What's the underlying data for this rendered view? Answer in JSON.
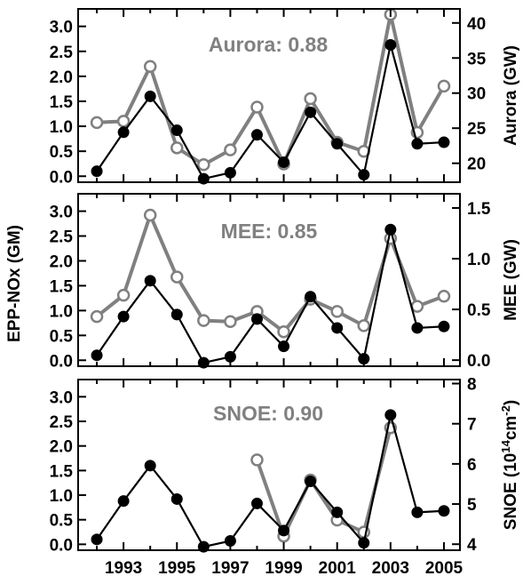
{
  "colors": {
    "epp": "#000000",
    "overlay": "#808080",
    "background": "#ffffff"
  },
  "shared_ylabel": "EPP-NOx (GM)",
  "chart_data": [
    {
      "type": "line",
      "title": "Aurora: 0.88",
      "xlabel": "",
      "xlim": [
        1991.3,
        2005.6
      ],
      "x_ticks": [
        1993,
        1995,
        1997,
        1999,
        2001,
        2003,
        2005
      ],
      "ylabel_left": "EPP-NOx (GM)",
      "ylim_left": [
        -0.12,
        3.35
      ],
      "y_ticks_left": [
        "0.0",
        "0.5",
        "1.0",
        "1.5",
        "2.0",
        "2.5",
        "3.0"
      ],
      "ylabel_right": "Aurora (GW)",
      "ylim_right": [
        17.3,
        42
      ],
      "y_ticks_right": [
        "20",
        "25",
        "30",
        "35",
        "40"
      ],
      "series": [
        {
          "axis": "left",
          "marker": "filled",
          "x": [
            1992,
            1993,
            1994,
            1995,
            1996,
            1997,
            1998,
            1999,
            2000,
            2001,
            2002,
            2003,
            2004,
            2005
          ],
          "values": [
            0.1,
            0.88,
            1.6,
            0.92,
            -0.05,
            0.07,
            0.83,
            0.28,
            1.28,
            0.65,
            0.03,
            2.63,
            0.65,
            0.68
          ]
        },
        {
          "axis": "right",
          "marker": "open",
          "x": [
            1992,
            1993,
            1994,
            1995,
            1996,
            1997,
            1998,
            1999,
            2000,
            2001,
            2002,
            2003,
            2004,
            2005
          ],
          "values": [
            25.8,
            26.0,
            33.8,
            22.2,
            19.8,
            21.9,
            28.0,
            19.9,
            29.2,
            23.0,
            21.7,
            41.2,
            24.4,
            31.0
          ]
        }
      ]
    },
    {
      "type": "line",
      "title": "MEE: 0.85",
      "xlabel": "",
      "xlim": [
        1991.3,
        2005.6
      ],
      "x_ticks": [
        1993,
        1995,
        1997,
        1999,
        2001,
        2003,
        2005
      ],
      "ylabel_left": "EPP-NOx (GM)",
      "ylim_left": [
        -0.12,
        3.35
      ],
      "y_ticks_left": [
        "0.0",
        "0.5",
        "1.0",
        "1.5",
        "2.0",
        "2.5",
        "3.0"
      ],
      "ylabel_right": "MEE (GW)",
      "ylim_right": [
        -0.06,
        1.64
      ],
      "y_ticks_right": [
        "0.0",
        "0.5",
        "1.0",
        "1.5"
      ],
      "series": [
        {
          "axis": "left",
          "marker": "filled",
          "x": [
            1992,
            1993,
            1994,
            1995,
            1996,
            1997,
            1998,
            1999,
            2000,
            2001,
            2002,
            2003,
            2004,
            2005
          ],
          "values": [
            0.1,
            0.88,
            1.6,
            0.92,
            -0.05,
            0.07,
            0.83,
            0.28,
            1.28,
            0.65,
            0.03,
            2.63,
            0.65,
            0.68
          ]
        },
        {
          "axis": "right",
          "marker": "open",
          "x": [
            1992,
            1993,
            1994,
            1995,
            1996,
            1997,
            1998,
            1999,
            2000,
            2001,
            2002,
            2003,
            2004,
            2005
          ],
          "values": [
            0.43,
            0.64,
            1.43,
            0.82,
            0.39,
            0.38,
            0.48,
            0.28,
            0.6,
            0.48,
            0.34,
            1.2,
            0.53,
            0.63
          ]
        }
      ]
    },
    {
      "type": "line",
      "title": "SNOE: 0.90",
      "xlabel": "",
      "xlim": [
        1991.3,
        2005.6
      ],
      "x_ticks": [
        1993,
        1995,
        1997,
        1999,
        2001,
        2003,
        2005
      ],
      "ylabel_left": "EPP-NOx (GM)",
      "ylim_left": [
        -0.12,
        3.35
      ],
      "y_ticks_left": [
        "0.0",
        "0.5",
        "1.0",
        "1.5",
        "2.0",
        "2.5",
        "3.0"
      ],
      "ylabel_right_text": "SNOE (10",
      "ylabel_right_sup": "14",
      "ylabel_right_unit": "cm",
      "ylabel_right_sup2": "-2",
      "ylabel_right_close": ")",
      "ylim_right": [
        3.85,
        8.1
      ],
      "y_ticks_right": [
        "4",
        "5",
        "6",
        "7",
        "8"
      ],
      "series": [
        {
          "axis": "left",
          "marker": "filled",
          "x": [
            1992,
            1993,
            1994,
            1995,
            1996,
            1997,
            1998,
            1999,
            2000,
            2001,
            2002,
            2003,
            2004,
            2005
          ],
          "values": [
            0.1,
            0.88,
            1.6,
            0.92,
            -0.05,
            0.07,
            0.83,
            0.28,
            1.28,
            0.65,
            0.03,
            2.63,
            0.65,
            0.68
          ]
        },
        {
          "axis": "right",
          "marker": "open",
          "x": [
            1998,
            1999,
            2000,
            2001,
            2002,
            2003
          ],
          "values": [
            6.1,
            4.2,
            5.6,
            4.6,
            4.3,
            6.9
          ]
        }
      ]
    }
  ]
}
